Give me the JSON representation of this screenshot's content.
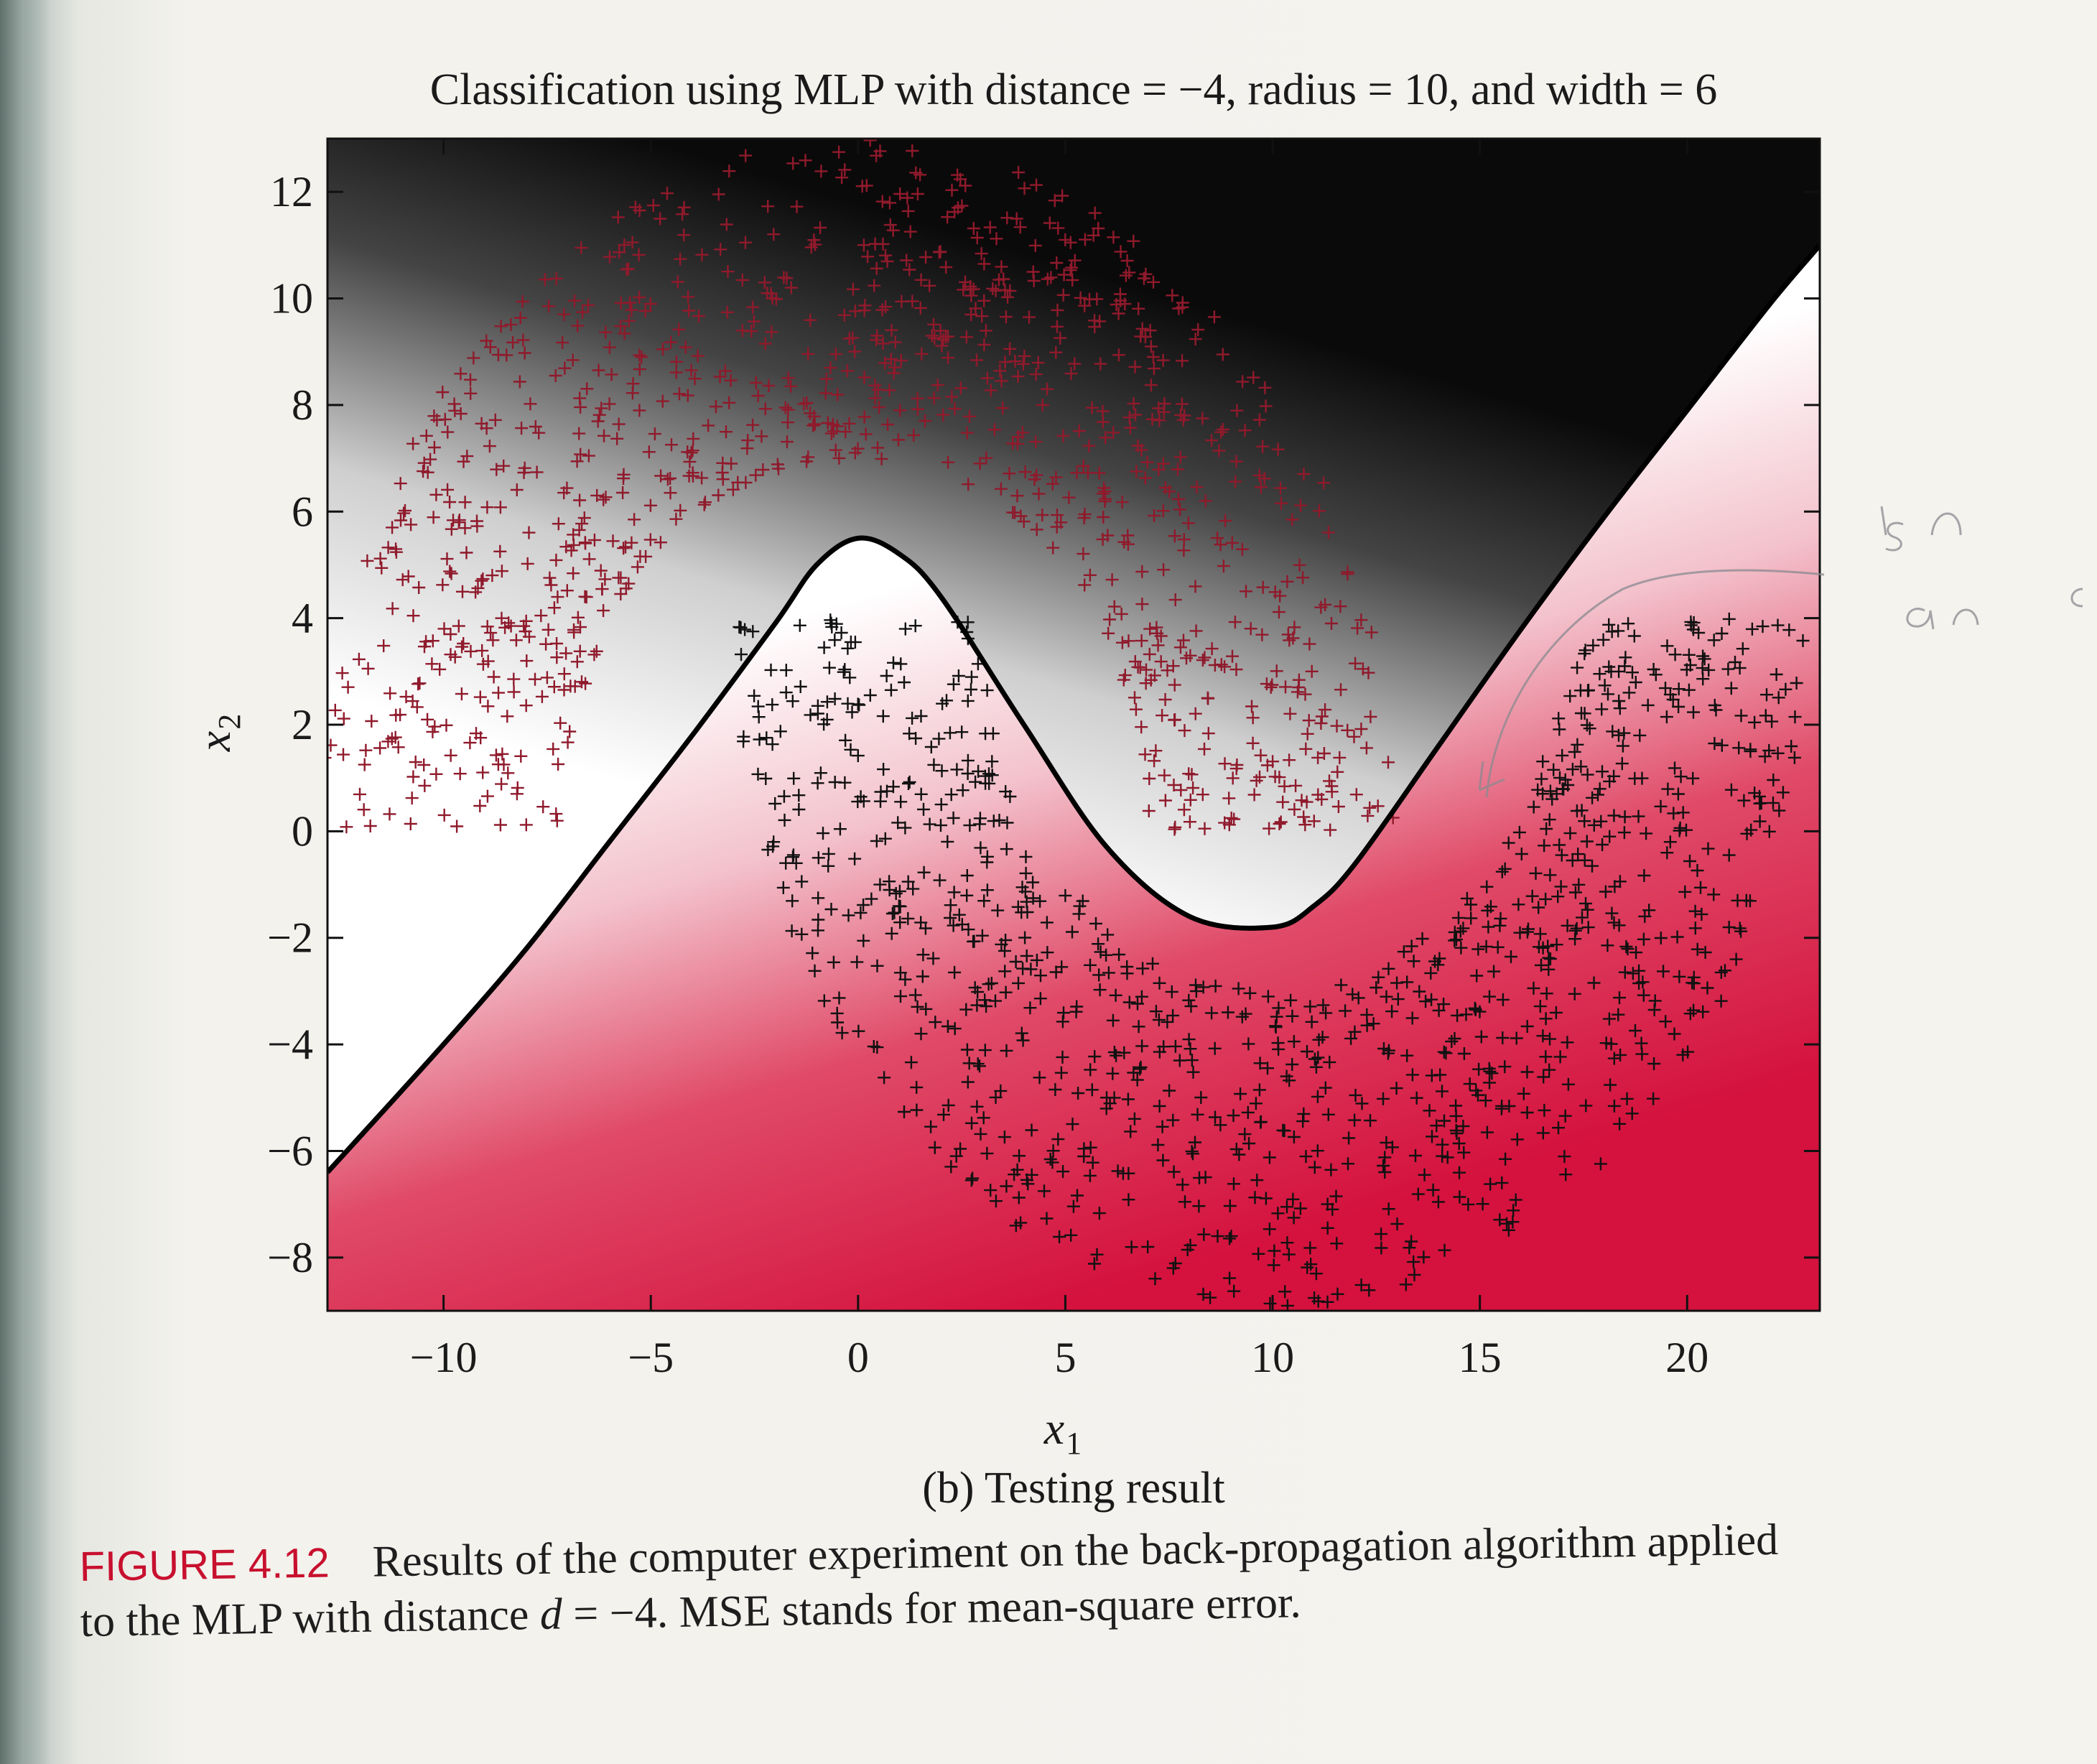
{
  "chart_data": {
    "type": "scatter",
    "title": "Classification using MLP with distance = −4, radius = 10, and width = 6",
    "xlabel": "x",
    "xlabel_sub": "1",
    "ylabel": "x",
    "ylabel_sub": "2",
    "subplot_caption": "(b) Testing result",
    "xlim": [
      -12.8,
      23.2
    ],
    "ylim": [
      -9,
      13
    ],
    "xticks": [
      -10,
      -5,
      0,
      5,
      10,
      15,
      20
    ],
    "yticks": [
      -8,
      -6,
      -4,
      -2,
      0,
      2,
      4,
      6,
      8,
      10,
      12
    ],
    "xtick_labels": [
      "−10",
      "−5",
      "0",
      "5",
      "10",
      "15",
      "20"
    ],
    "ytick_labels": [
      "−8",
      "−6",
      "−4",
      "−2",
      "0",
      "2",
      "4",
      "6",
      "8",
      "10",
      "12"
    ],
    "background": "decision-region shading: black above boundary fading to white, crimson below boundary",
    "grid": false,
    "colors": {
      "class_upper_marker": "#8f1a2c",
      "class_lower_marker": "#111111",
      "region_upper": "#0a0a0a",
      "region_lower": "#d4123d",
      "boundary": "#000000"
    },
    "decision_boundary": {
      "x": [
        -12.8,
        -10,
        -8,
        -6,
        -4,
        -2,
        -1,
        0,
        1,
        2,
        4,
        6,
        8,
        10,
        11,
        12,
        14,
        16,
        18,
        20,
        22,
        23.2
      ],
      "y": [
        -6.4,
        -4.0,
        -2.2,
        -0.2,
        1.8,
        3.9,
        5.0,
        5.5,
        5.2,
        4.4,
        2.0,
        -0.3,
        -1.6,
        -1.8,
        -1.4,
        -0.6,
        1.6,
        3.8,
        5.9,
        7.9,
        9.9,
        11.0
      ]
    },
    "series": [
      {
        "name": "",
        "class": "upper moon",
        "marker": "+",
        "distribution": {
          "center_x": 0,
          "center_y": 0,
          "radius": 10,
          "width": 6,
          "angle_range_deg": [
            0,
            180
          ],
          "sample_count": 1000
        }
      },
      {
        "name": "",
        "class": "lower moon",
        "marker": "+",
        "distribution": {
          "center_x": 10,
          "center_y": 4,
          "radius": 10,
          "width": 6,
          "angle_range_deg": [
            180,
            360
          ],
          "sample_count": 1000
        }
      }
    ],
    "annotations": [
      "handwritten pencil marks: \"isn\", \"an\", arrow pointing to misclassified point near (13, 0)"
    ]
  },
  "caption": {
    "label": "FIGURE 4.12",
    "line1": "Results of the computer experiment on the back-propagation algorithm applied",
    "line2_prefix": "to the MLP with distance ",
    "line2_var": "d",
    "line2_suffix": " = −4. MSE stands for mean-square error."
  }
}
